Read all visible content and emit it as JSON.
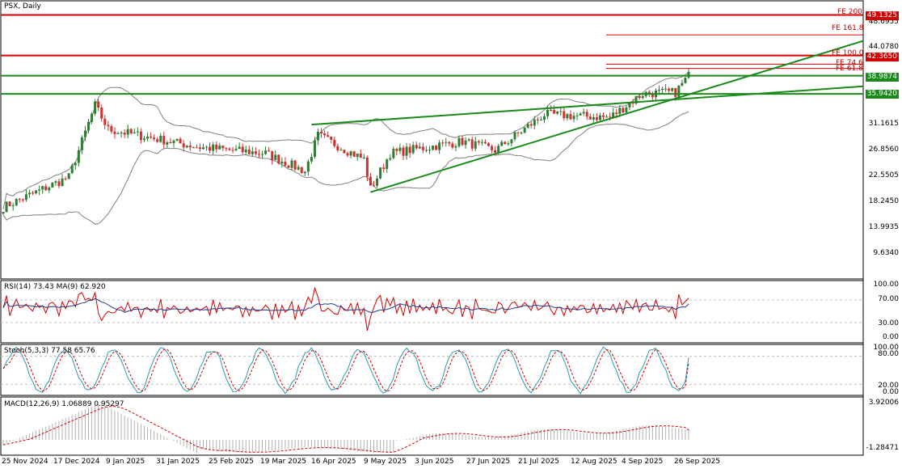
{
  "main_title": "PSX, Daily",
  "rsi_title": "RSI(14) 73.43 MA(9) 62.920",
  "stoch_title": "Stoch(5,3,3) 77.58 65.76",
  "macd_title": "MACD(12,26,9) 1.06889 0.95297",
  "colors": {
    "bull": "#2e7d32",
    "bear": "#d32f2f",
    "band": "#808080",
    "trend": "#1a8a1a",
    "fib": "#d40000",
    "rsi": "#d00000",
    "rsi_ma": "#1f3a8a",
    "stoch_main": "#2a9bb0",
    "stoch_signal": "#d00000",
    "macd_hist": "#b0b0b0",
    "macd_signal": "#d00000"
  },
  "chart_data": [
    {
      "type": "candlestick",
      "symbol": "PSX",
      "timeframe": "Daily",
      "y_ticks": [
        "49.1325",
        "48.6955",
        "44.0780",
        "42.3650",
        "38.9874",
        "35.9420",
        "31.1615",
        "26.8560",
        "22.5505",
        "18.2450",
        "13.9935",
        "9.6340"
      ],
      "ylim": [
        5.0,
        51.5
      ],
      "close_start": 17.0,
      "close_end": 38.9874,
      "horizontal_levels": [
        {
          "label": "49.1325",
          "value": 49.1325,
          "color": "red"
        },
        {
          "label": "42.3650",
          "value": 42.365,
          "color": "red"
        },
        {
          "label": "38.9874",
          "value": 38.9874,
          "color": "green"
        },
        {
          "label": "35.9420",
          "value": 35.942,
          "color": "green"
        }
      ],
      "fibonacci_expansion": [
        {
          "label": "FE 200",
          "value": 49.1325
        },
        {
          "label": "FE 161.8",
          "value": 45.8
        },
        {
          "label": "FE 100.0",
          "value": 42.365
        },
        {
          "label": "FE 74.6",
          "value": 40.9
        },
        {
          "label": "FE 61.8",
          "value": 40.2
        }
      ],
      "bollinger_bands": true
    },
    {
      "type": "line",
      "name": "RSI(14)",
      "value": 73.43,
      "ma_value": 62.92,
      "y_ticks": [
        "100.00",
        "70.00",
        "30.00",
        "0.00"
      ],
      "ylim": [
        0,
        100
      ],
      "levels": [
        70,
        30
      ]
    },
    {
      "type": "line",
      "name": "Stoch(5,3,3)",
      "main": 77.58,
      "signal": 65.76,
      "y_ticks": [
        "100.00",
        "80.00",
        "20.00",
        "0.00"
      ],
      "ylim": [
        0,
        100
      ],
      "levels": [
        80,
        20
      ]
    },
    {
      "type": "bar",
      "name": "MACD(12,26,9)",
      "macd": 1.06889,
      "signal": 0.95297,
      "y_ticks": [
        "3.92006",
        "-1.28471"
      ],
      "ylim": [
        -1.28471,
        3.92006
      ]
    }
  ],
  "x_labels": [
    "25 Nov 2024",
    "17 Dec 2024",
    "9 Jan 2025",
    "31 Jan 2025",
    "25 Feb 2025",
    "19 Mar 2025",
    "16 Apr 2025",
    "9 May 2025",
    "3 Jun 2025",
    "27 Jun 2025",
    "21 Jul 2025",
    "12 Aug 2025",
    "4 Sep 2025",
    "26 Sep 2025"
  ]
}
